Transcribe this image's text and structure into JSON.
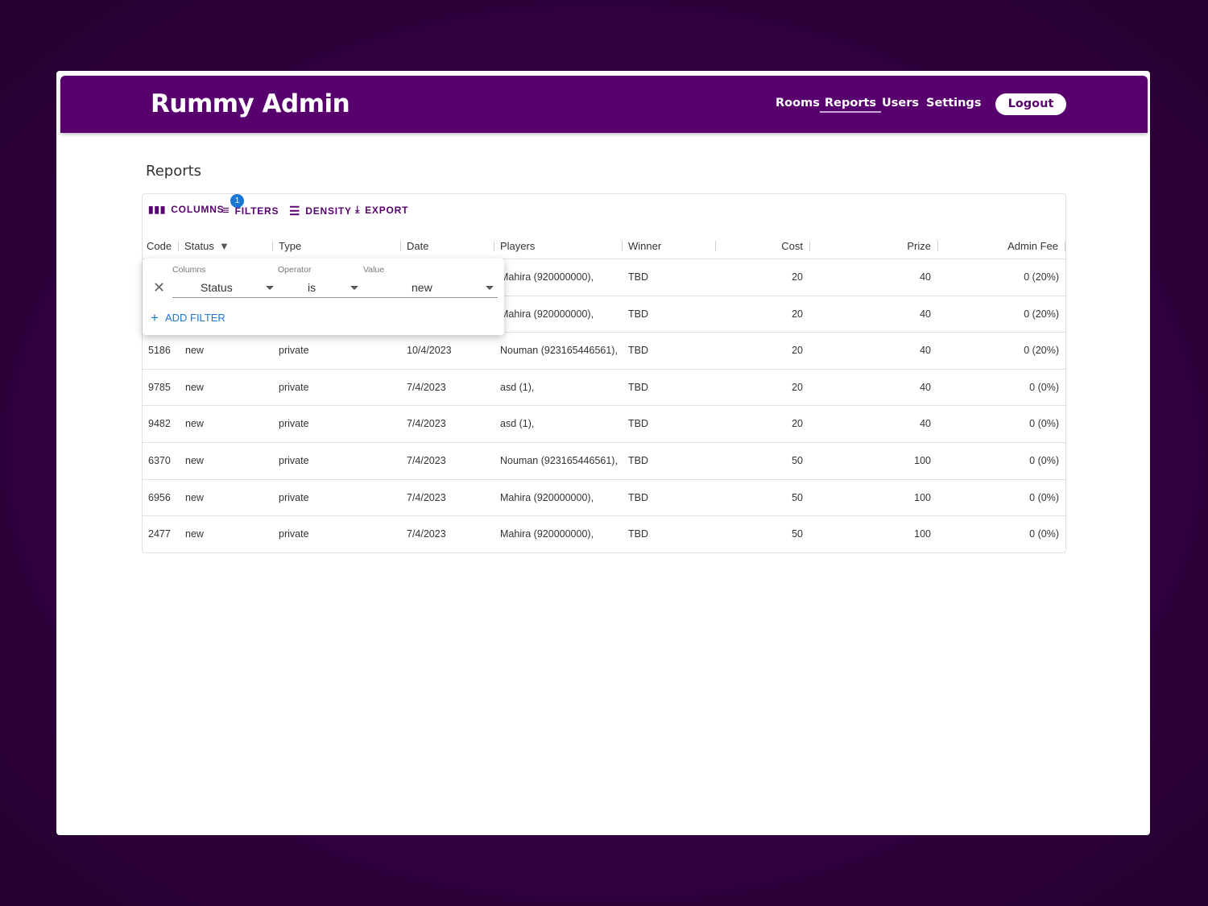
{
  "app": {
    "title": "Rummy Admin",
    "nav": [
      "Rooms",
      "Reports",
      "Users",
      "Settings"
    ],
    "active_nav": "Reports",
    "logout": "Logout",
    "accent": "#57006e"
  },
  "page": {
    "title": "Reports"
  },
  "toolbar": {
    "columns": "COLUMNS",
    "filters": "FILTERS",
    "filter_count": "1",
    "density": "DENSITY",
    "export": "EXPORT"
  },
  "columns": [
    "Code",
    "Status",
    "Type",
    "Date",
    "Players",
    "Winner",
    "Cost",
    "Prize",
    "Admin Fee"
  ],
  "rows": [
    [
      "",
      "",
      "",
      "",
      "Mahira (920000000),",
      "TBD",
      "20",
      "40",
      "0 (20%)"
    ],
    [
      "",
      "",
      "",
      "",
      "Mahira (920000000),",
      "TBD",
      "20",
      "40",
      "0 (20%)"
    ],
    [
      "5186",
      "new",
      "private",
      "10/4/2023",
      "Nouman (923165446561),",
      "TBD",
      "20",
      "40",
      "0 (20%)"
    ],
    [
      "9785",
      "new",
      "private",
      "7/4/2023",
      "asd (1),",
      "TBD",
      "20",
      "40",
      "0 (0%)"
    ],
    [
      "9482",
      "new",
      "private",
      "7/4/2023",
      "asd (1),",
      "TBD",
      "20",
      "40",
      "0 (0%)"
    ],
    [
      "6370",
      "new",
      "private",
      "7/4/2023",
      "Nouman (923165446561),",
      "TBD",
      "50",
      "100",
      "0 (0%)"
    ],
    [
      "6956",
      "new",
      "private",
      "7/4/2023",
      "Mahira (920000000),",
      "TBD",
      "50",
      "100",
      "0 (0%)"
    ],
    [
      "2477",
      "new",
      "private",
      "7/4/2023",
      "Mahira (920000000),",
      "TBD",
      "50",
      "100",
      "0 (0%)"
    ]
  ],
  "filter_panel": {
    "columns_label": "Columns",
    "operator_label": "Operator",
    "value_label": "Value",
    "column": "Status",
    "operator": "is",
    "value": "new",
    "add_filter": "ADD FILTER"
  }
}
